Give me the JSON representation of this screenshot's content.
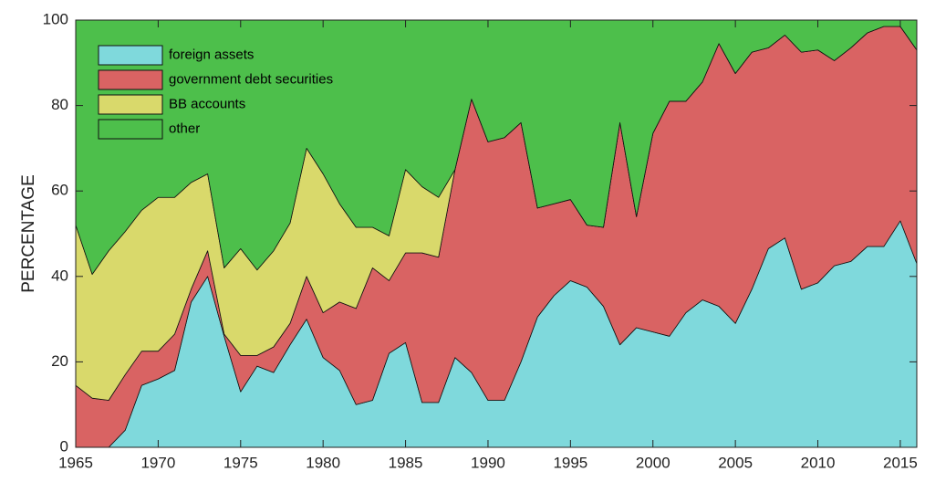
{
  "chart_data": {
    "type": "stacked_area",
    "ylabel": "PERCENTAGE",
    "x": [
      1965,
      1966,
      1967,
      1968,
      1969,
      1970,
      1971,
      1972,
      1973,
      1974,
      1975,
      1976,
      1977,
      1978,
      1979,
      1980,
      1981,
      1982,
      1983,
      1984,
      1985,
      1986,
      1987,
      1988,
      1989,
      1990,
      1991,
      1992,
      1993,
      1994,
      1995,
      1996,
      1997,
      1998,
      1999,
      2000,
      2001,
      2002,
      2003,
      2004,
      2005,
      2006,
      2007,
      2008,
      2009,
      2010,
      2011,
      2012,
      2013,
      2014,
      2015,
      2016
    ],
    "series": [
      {
        "name": "foreign assets",
        "color": "#7fd9dc",
        "values": [
          0,
          0,
          0,
          4,
          14.5,
          16,
          18,
          34,
          40,
          26,
          13,
          19,
          17.5,
          24,
          30,
          21,
          18,
          10,
          11,
          22,
          24.5,
          10.5,
          10.5,
          21,
          17.5,
          11,
          11,
          20,
          30.5,
          35.5,
          39,
          37.5,
          33,
          24,
          28,
          27,
          26,
          31.5,
          34.5,
          33,
          29,
          37,
          46.5,
          49,
          37,
          38.5,
          42.5,
          43.5,
          47,
          47,
          53,
          43
        ]
      },
      {
        "name": "government debt securities",
        "color": "#d96363",
        "values": [
          14.5,
          11.5,
          11,
          13,
          8,
          6.5,
          8.5,
          3,
          6,
          0.5,
          8.5,
          2.5,
          6,
          5,
          10,
          10.5,
          16,
          22.5,
          31,
          17,
          21,
          35,
          34,
          44,
          64,
          60.5,
          61.5,
          56,
          25.5,
          21.5,
          19,
          14.5,
          18.5,
          52,
          26,
          46.5,
          55,
          49.5,
          51,
          61.5,
          58.5,
          55.5,
          47,
          47.5,
          55.5,
          54.5,
          48,
          50,
          50,
          51.5,
          45.5,
          50
        ]
      },
      {
        "name": "BB accounts",
        "color": "#d9d96b",
        "values": [
          37.5,
          29,
          35,
          33.5,
          33,
          36,
          32,
          25,
          18,
          15.5,
          25,
          20,
          22.5,
          23.5,
          30,
          32.5,
          23,
          19,
          9.5,
          10.5,
          19.5,
          15.5,
          14,
          0,
          0,
          0,
          0,
          0,
          0,
          0,
          0,
          0,
          0,
          0,
          0,
          0,
          0,
          0,
          0,
          0,
          0,
          0,
          0,
          0,
          0,
          0,
          0,
          0,
          0,
          0,
          0,
          0
        ]
      },
      {
        "name": "other",
        "color": "#4dbf4b",
        "values": [
          48,
          59.5,
          54,
          49.5,
          44.5,
          41.5,
          41.5,
          38,
          36,
          58,
          53.5,
          58.5,
          54,
          47.5,
          30,
          36,
          43,
          48.5,
          48.5,
          50.5,
          35,
          39,
          41.5,
          35,
          18.5,
          28.5,
          27.5,
          24,
          44,
          43,
          42,
          48,
          48.5,
          24,
          46,
          26.5,
          19,
          19,
          14.5,
          5.5,
          12.5,
          7.5,
          6.5,
          3.5,
          7.5,
          7,
          9.5,
          6.5,
          3,
          1.5,
          1.5,
          7
        ]
      }
    ],
    "xlim": [
      1965,
      2016
    ],
    "xticks": [
      1965,
      1970,
      1975,
      1980,
      1985,
      1990,
      1995,
      2000,
      2005,
      2010,
      2015
    ],
    "ylim": [
      0,
      100
    ],
    "yticks": [
      0,
      20,
      40,
      60,
      80,
      100
    ],
    "legend": "upper left"
  }
}
